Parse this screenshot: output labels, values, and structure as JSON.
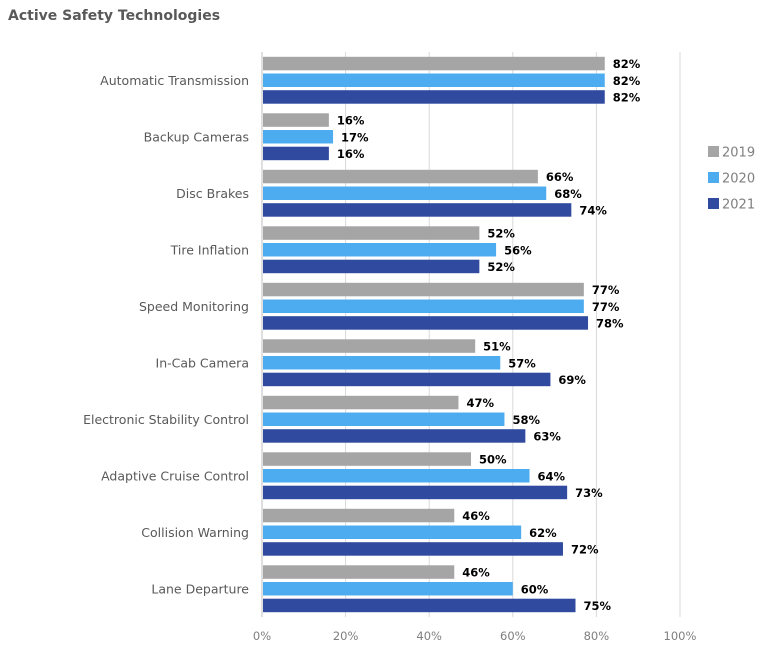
{
  "chart_data": {
    "type": "bar",
    "orientation": "horizontal",
    "title": "Active Safety Technologies",
    "categories": [
      "Automatic Transmission",
      "Backup Cameras",
      "Disc Brakes",
      "Tire Inflation",
      "Speed Monitoring",
      "In-Cab Camera",
      "Electronic Stability Control",
      "Adaptive Cruise Control",
      "Collision Warning",
      "Lane Departure"
    ],
    "series": [
      {
        "name": "2019",
        "color": "#a5a5a5",
        "values": [
          82,
          16,
          66,
          52,
          77,
          51,
          47,
          50,
          46,
          46
        ]
      },
      {
        "name": "2020",
        "color": "#4dacf0",
        "values": [
          82,
          17,
          68,
          56,
          77,
          57,
          58,
          64,
          62,
          60
        ]
      },
      {
        "name": "2021",
        "color": "#2f4a9f",
        "values": [
          82,
          16,
          74,
          52,
          78,
          69,
          63,
          73,
          72,
          75
        ]
      }
    ],
    "xlim": [
      0,
      100
    ],
    "xticks": [
      "0%",
      "20%",
      "40%",
      "60%",
      "80%",
      "100%"
    ],
    "value_suffix": "%",
    "grid": true,
    "legend": "right"
  }
}
